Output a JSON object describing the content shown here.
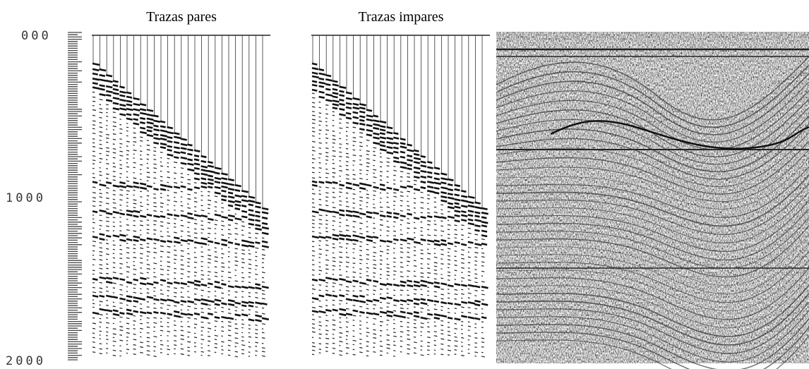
{
  "axis": {
    "labels": [
      "000",
      "1000",
      "2000"
    ]
  },
  "panels": [
    {
      "title": "Trazas pares"
    },
    {
      "title": "Trazas impares"
    }
  ]
}
